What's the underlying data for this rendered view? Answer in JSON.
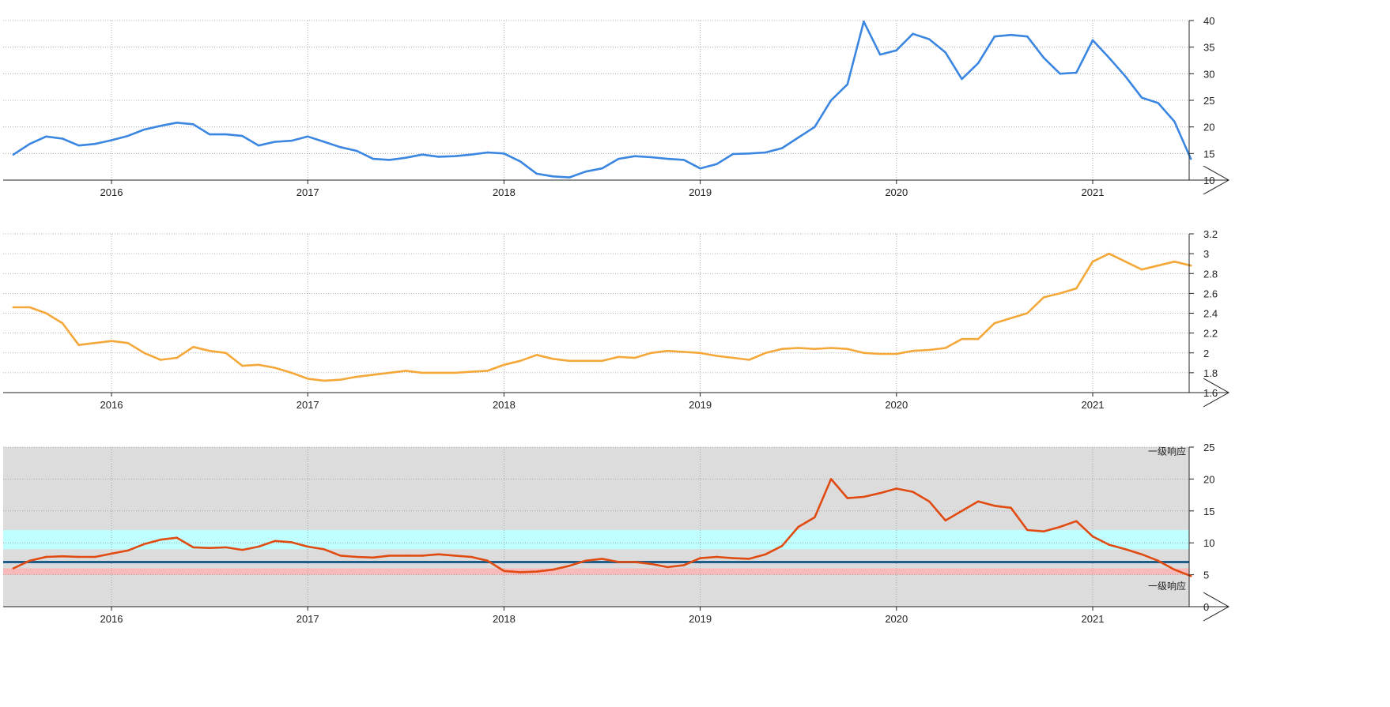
{
  "chart_data": [
    {
      "type": "line",
      "x_axis": {
        "type": "date",
        "tick_labels": [
          "2016",
          "2017",
          "2018",
          "2019",
          "2020",
          "2021"
        ],
        "range": [
          "2015-07",
          "2021-07"
        ]
      },
      "y_axis": {
        "ticks": [
          10,
          15,
          20,
          25,
          30,
          35,
          40
        ],
        "range": [
          10,
          40
        ],
        "side": "right"
      },
      "grid": true,
      "colors": {
        "line": "#3a86e0"
      },
      "series": [
        {
          "x": [
            "2015-07",
            "2015-08",
            "2015-09",
            "2015-10",
            "2015-11",
            "2015-12",
            "2016-01",
            "2016-02",
            "2016-03",
            "2016-04",
            "2016-05",
            "2016-06",
            "2016-07",
            "2016-08",
            "2016-09",
            "2016-10",
            "2016-11",
            "2016-12",
            "2017-01",
            "2017-02",
            "2017-03",
            "2017-04",
            "2017-05",
            "2017-06",
            "2017-07",
            "2017-08",
            "2017-09",
            "2017-10",
            "2017-11",
            "2017-12",
            "2018-01",
            "2018-02",
            "2018-03",
            "2018-04",
            "2018-05",
            "2018-06",
            "2018-07",
            "2018-08",
            "2018-09",
            "2018-10",
            "2018-11",
            "2018-12",
            "2019-01",
            "2019-02",
            "2019-03",
            "2019-04",
            "2019-05",
            "2019-06",
            "2019-07",
            "2019-08",
            "2019-09",
            "2019-10",
            "2019-11",
            "2019-12",
            "2020-01",
            "2020-02",
            "2020-03",
            "2020-04",
            "2020-05",
            "2020-06",
            "2020-07",
            "2020-08",
            "2020-09",
            "2020-10",
            "2020-11",
            "2020-12",
            "2021-01",
            "2021-02",
            "2021-03",
            "2021-04",
            "2021-05",
            "2021-06",
            "2021-07"
          ],
          "values": [
            14.8,
            16.8,
            18.2,
            17.8,
            16.5,
            16.8,
            17.5,
            18.3,
            19.5,
            20.2,
            20.8,
            20.5,
            18.6,
            18.6,
            18.3,
            16.5,
            17.2,
            17.4,
            18.2,
            17.2,
            16.2,
            15.5,
            14.0,
            13.8,
            14.2,
            14.8,
            14.4,
            14.5,
            14.8,
            15.2,
            15.0,
            13.5,
            11.2,
            10.7,
            10.5,
            11.6,
            12.2,
            14.0,
            14.5,
            14.3,
            14.0,
            13.8,
            12.2,
            13.0,
            14.9,
            15.0,
            15.2,
            16.0,
            18.0,
            20.0,
            25.0,
            28.0,
            39.8,
            33.6,
            34.4,
            37.5,
            36.5,
            34.0,
            29.0,
            32.0,
            37.0,
            37.3,
            37.0,
            33.0,
            30.0,
            30.2,
            36.3,
            33.0,
            29.5,
            25.5,
            24.5,
            21.0,
            14.0
          ]
        }
      ]
    },
    {
      "type": "line",
      "x_axis": {
        "type": "date",
        "tick_labels": [
          "2016",
          "2017",
          "2018",
          "2019",
          "2020",
          "2021"
        ],
        "range": [
          "2015-07",
          "2021-07"
        ]
      },
      "y_axis": {
        "ticks": [
          1.6,
          1.8,
          2,
          2.2,
          2.4,
          2.6,
          2.8,
          3,
          3.2
        ],
        "range": [
          1.6,
          3.2
        ],
        "side": "right"
      },
      "grid": true,
      "colors": {
        "line": "#f5a83a"
      },
      "series": [
        {
          "x": [
            "2015-07",
            "2015-08",
            "2015-09",
            "2015-10",
            "2015-11",
            "2015-12",
            "2016-01",
            "2016-02",
            "2016-03",
            "2016-04",
            "2016-05",
            "2016-06",
            "2016-07",
            "2016-08",
            "2016-09",
            "2016-10",
            "2016-11",
            "2016-12",
            "2017-01",
            "2017-02",
            "2017-03",
            "2017-04",
            "2017-05",
            "2017-06",
            "2017-07",
            "2017-08",
            "2017-09",
            "2017-10",
            "2017-11",
            "2017-12",
            "2018-01",
            "2018-02",
            "2018-03",
            "2018-04",
            "2018-05",
            "2018-06",
            "2018-07",
            "2018-08",
            "2018-09",
            "2018-10",
            "2018-11",
            "2018-12",
            "2019-01",
            "2019-02",
            "2019-03",
            "2019-04",
            "2019-05",
            "2019-06",
            "2019-07",
            "2019-08",
            "2019-09",
            "2019-10",
            "2019-11",
            "2019-12",
            "2020-01",
            "2020-02",
            "2020-03",
            "2020-04",
            "2020-05",
            "2020-06",
            "2020-07",
            "2020-08",
            "2020-09",
            "2020-10",
            "2020-11",
            "2020-12",
            "2021-01",
            "2021-02",
            "2021-03",
            "2021-04",
            "2021-05",
            "2021-06",
            "2021-07"
          ],
          "values": [
            2.46,
            2.46,
            2.4,
            2.3,
            2.08,
            2.1,
            2.12,
            2.1,
            2.0,
            1.93,
            1.95,
            2.06,
            2.02,
            2.0,
            1.87,
            1.88,
            1.85,
            1.8,
            1.74,
            1.72,
            1.73,
            1.76,
            1.78,
            1.8,
            1.82,
            1.8,
            1.8,
            1.8,
            1.81,
            1.82,
            1.88,
            1.92,
            1.98,
            1.94,
            1.92,
            1.92,
            1.92,
            1.96,
            1.95,
            2.0,
            2.02,
            2.01,
            2.0,
            1.97,
            1.95,
            1.93,
            2.0,
            2.04,
            2.05,
            2.04,
            2.05,
            2.04,
            2.0,
            1.99,
            1.99,
            2.02,
            2.03,
            2.05,
            2.14,
            2.14,
            2.3,
            2.35,
            2.4,
            2.56,
            2.6,
            2.65,
            2.92,
            3.0,
            2.92,
            2.84,
            2.88,
            2.92,
            2.88
          ]
        }
      ]
    },
    {
      "type": "line",
      "x_axis": {
        "type": "date",
        "tick_labels": [
          "2016",
          "2017",
          "2018",
          "2019",
          "2020",
          "2021"
        ],
        "range": [
          "2015-07",
          "2021-07"
        ]
      },
      "y_axis": {
        "ticks": [
          0,
          5,
          10,
          15,
          20,
          25
        ],
        "range": [
          0,
          25
        ],
        "side": "right"
      },
      "grid": true,
      "background_color": "#dcdcdc",
      "bands": [
        {
          "from": 9.0,
          "to": 12.0,
          "color": "#c0ffff"
        },
        {
          "from": 5.0,
          "to": 6.0,
          "color": "#f7b9b9"
        }
      ],
      "reference_line": {
        "value": 7.0,
        "color": "#1f5d8a"
      },
      "annotations": [
        {
          "text": "一级响应",
          "y": 24.3
        },
        {
          "text": "一级响应",
          "y": 3.2
        }
      ],
      "colors": {
        "line": "#e04b12"
      },
      "series": [
        {
          "x": [
            "2015-07",
            "2015-08",
            "2015-09",
            "2015-10",
            "2015-11",
            "2015-12",
            "2016-01",
            "2016-02",
            "2016-03",
            "2016-04",
            "2016-05",
            "2016-06",
            "2016-07",
            "2016-08",
            "2016-09",
            "2016-10",
            "2016-11",
            "2016-12",
            "2017-01",
            "2017-02",
            "2017-03",
            "2017-04",
            "2017-05",
            "2017-06",
            "2017-07",
            "2017-08",
            "2017-09",
            "2017-10",
            "2017-11",
            "2017-12",
            "2018-01",
            "2018-02",
            "2018-03",
            "2018-04",
            "2018-05",
            "2018-06",
            "2018-07",
            "2018-08",
            "2018-09",
            "2018-10",
            "2018-11",
            "2018-12",
            "2019-01",
            "2019-02",
            "2019-03",
            "2019-04",
            "2019-05",
            "2019-06",
            "2019-07",
            "2019-08",
            "2019-09",
            "2019-10",
            "2019-11",
            "2019-12",
            "2020-01",
            "2020-02",
            "2020-03",
            "2020-04",
            "2020-05",
            "2020-06",
            "2020-07",
            "2020-08",
            "2020-09",
            "2020-10",
            "2020-11",
            "2020-12",
            "2021-01",
            "2021-02",
            "2021-03",
            "2021-04",
            "2021-05",
            "2021-06",
            "2021-07"
          ],
          "values": [
            6.0,
            7.2,
            7.8,
            7.9,
            7.8,
            7.8,
            8.3,
            8.8,
            9.8,
            10.5,
            10.8,
            9.3,
            9.2,
            9.3,
            8.9,
            9.4,
            10.3,
            10.1,
            9.4,
            9.0,
            8.0,
            7.8,
            7.7,
            8.0,
            8.0,
            8.0,
            8.2,
            8.0,
            7.8,
            7.2,
            5.6,
            5.4,
            5.5,
            5.8,
            6.4,
            7.2,
            7.5,
            7.0,
            7.0,
            6.7,
            6.2,
            6.5,
            7.6,
            7.8,
            7.6,
            7.5,
            8.2,
            9.5,
            12.5,
            14.0,
            20.0,
            17.0,
            17.2,
            17.8,
            18.5,
            18.0,
            16.5,
            13.5,
            15.0,
            16.5,
            15.8,
            15.5,
            12.0,
            11.8,
            12.5,
            13.4,
            11.0,
            9.7,
            9.0,
            8.2,
            7.2,
            5.8,
            4.8
          ]
        }
      ]
    }
  ]
}
